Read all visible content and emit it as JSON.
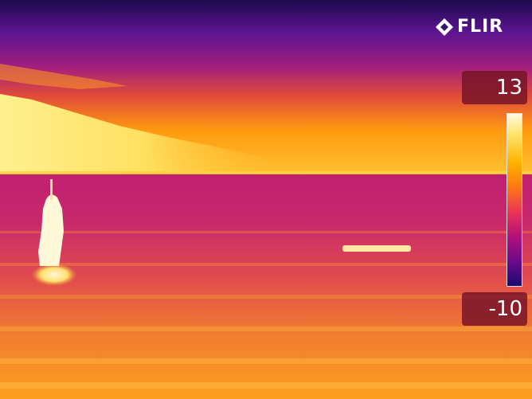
{
  "brand": {
    "logo_text": "FLIR",
    "icon": "flir-diamond-icon"
  },
  "temperature_scale": {
    "max": "13",
    "min": "-10",
    "colors": [
      "#fffbe0",
      "#ffe36a",
      "#ffb400",
      "#ff7a10",
      "#e8305a",
      "#b0107a",
      "#6a0a8a",
      "#1a0a70"
    ]
  },
  "palette": {
    "sky_top": "#2a0a5e",
    "sky_mid": "#8a1a8a",
    "horizon_glow": "#ffb020",
    "cloud": "#ffe880",
    "water": "#d0306a",
    "hot_target": "#fff8d8"
  }
}
